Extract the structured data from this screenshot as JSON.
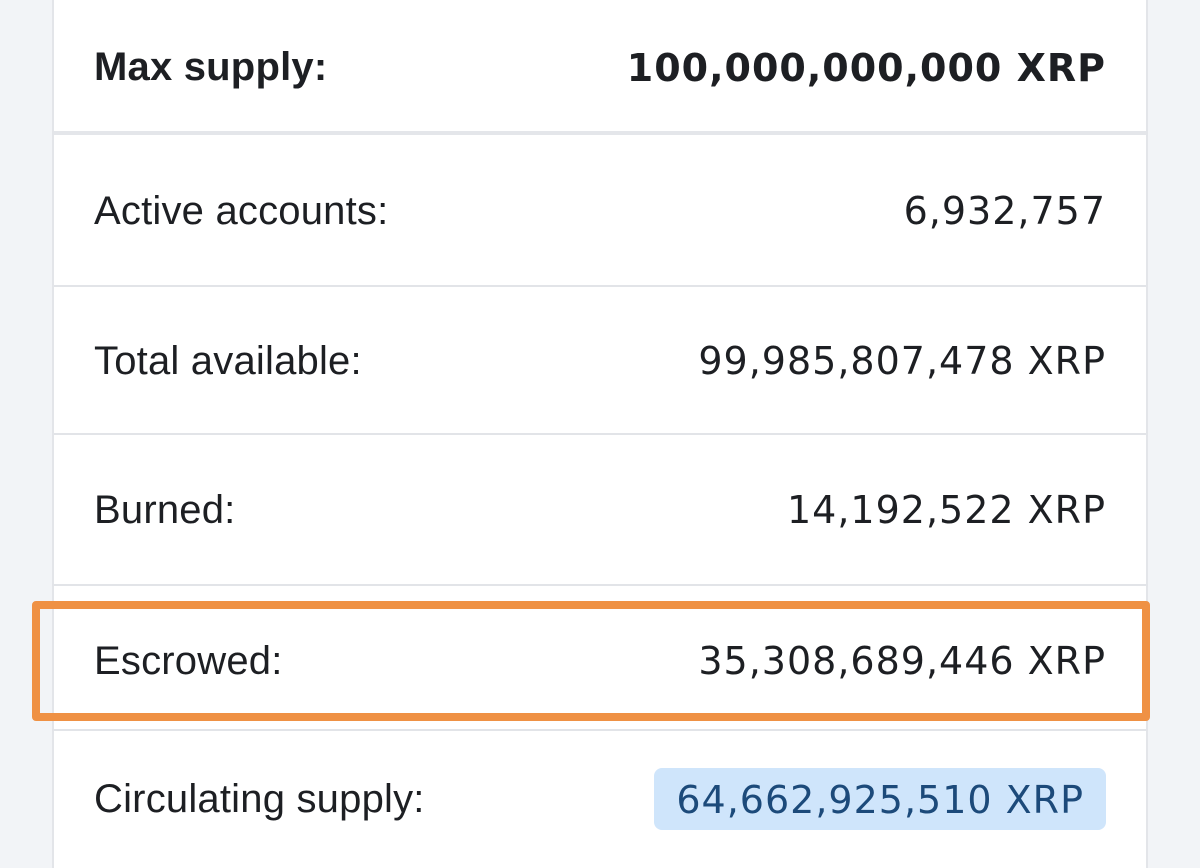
{
  "supply_table": {
    "rows": [
      {
        "label": "Max supply:",
        "value": "100,000,000,000 XRP"
      },
      {
        "label": "Active accounts:",
        "value": "6,932,757"
      },
      {
        "label": "Total available:",
        "value": "99,985,807,478 XRP"
      },
      {
        "label": "Burned:",
        "value": "14,192,522 XRP"
      },
      {
        "label": "Escrowed:",
        "value": "35,308,689,446 XRP"
      },
      {
        "label": "Circulating supply:",
        "value": "64,662,925,510 XRP"
      }
    ]
  },
  "colors": {
    "highlight_border": "#ef9144",
    "badge_background": "#cfe5fb",
    "badge_text": "#1c4a7a"
  }
}
